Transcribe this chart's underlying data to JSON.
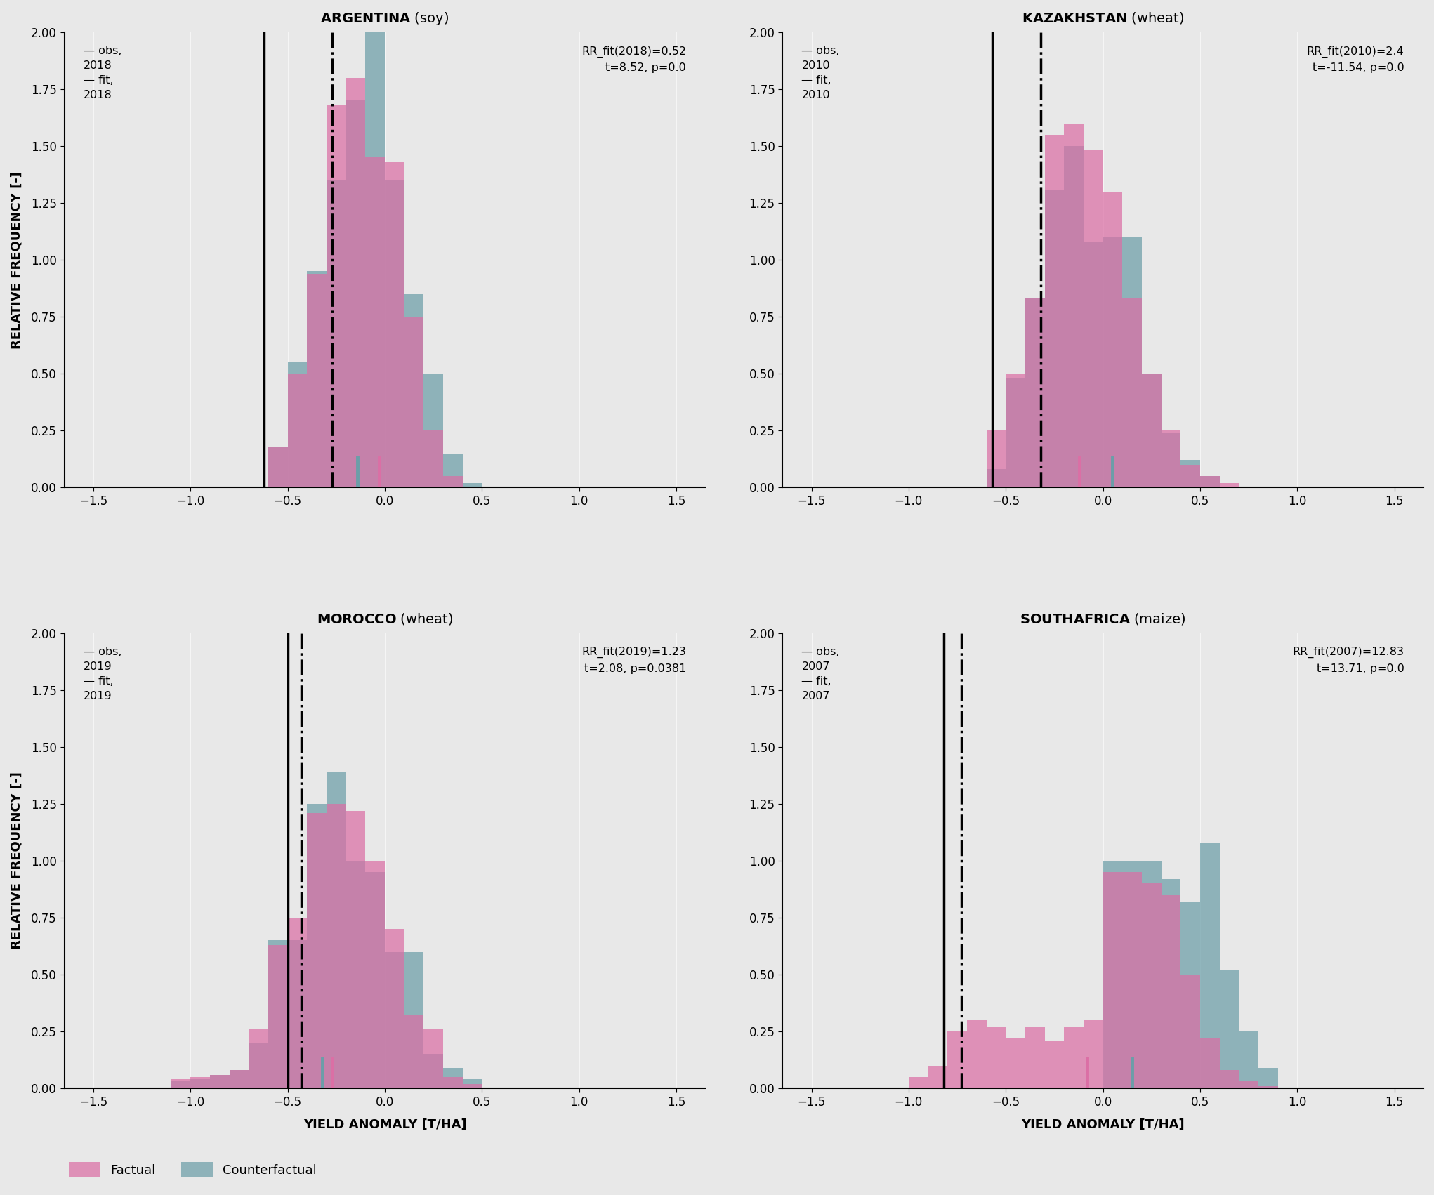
{
  "panels": [
    {
      "title": "ARGENTINA",
      "crop": "soy",
      "year": 2018,
      "rr_text": "RR_fit(2018)=0.52\nt=8.52, p=0.0",
      "obs_line": -0.62,
      "fit_line": -0.27,
      "factual_tick": -0.03,
      "counterfactual_tick": -0.14,
      "factual_bins": [
        -0.55,
        -0.45,
        -0.35,
        -0.25,
        -0.15,
        -0.05,
        0.05,
        0.15,
        0.25,
        0.35,
        0.45,
        0.55
      ],
      "factual_heights": [
        0.18,
        0.5,
        0.94,
        1.68,
        1.8,
        1.45,
        1.43,
        0.75,
        0.25,
        0.05,
        0.0,
        0.0
      ],
      "counterfactual_bins": [
        -0.55,
        -0.45,
        -0.35,
        -0.25,
        -0.15,
        -0.05,
        0.05,
        0.15,
        0.25,
        0.35,
        0.45
      ],
      "counterfactual_heights": [
        0.18,
        0.55,
        0.95,
        1.35,
        1.7,
        2.0,
        1.35,
        0.85,
        0.5,
        0.15,
        0.02
      ],
      "ylim": [
        0,
        2.0
      ],
      "xlim": [
        -1.65,
        1.65
      ],
      "yticks": [
        0,
        0.25,
        0.5,
        0.75,
        1.0,
        1.25,
        1.5,
        1.75,
        2.0
      ],
      "xticks": [
        -1.5,
        -1.0,
        -0.5,
        0.0,
        0.5,
        1.0,
        1.5
      ],
      "ylabel": "RELATIVE FREQUENCY [-]",
      "xlabel": ""
    },
    {
      "title": "KAZAKHSTAN",
      "crop": "wheat",
      "year": 2010,
      "rr_text": "RR_fit(2010)=2.4\nt=-11.54, p=0.0",
      "obs_line": -0.57,
      "fit_line": -0.32,
      "factual_tick": -0.12,
      "counterfactual_tick": 0.05,
      "factual_bins": [
        -0.55,
        -0.45,
        -0.35,
        -0.25,
        -0.15,
        -0.05,
        0.05,
        0.15,
        0.25,
        0.35,
        0.45,
        0.55,
        0.65,
        0.75
      ],
      "factual_heights": [
        0.25,
        0.5,
        0.83,
        1.55,
        1.6,
        1.48,
        1.3,
        0.83,
        0.5,
        0.25,
        0.1,
        0.05,
        0.02,
        0.0
      ],
      "counterfactual_bins": [
        -0.55,
        -0.45,
        -0.35,
        -0.25,
        -0.15,
        -0.05,
        0.05,
        0.15,
        0.25,
        0.35,
        0.45,
        0.55,
        0.65,
        0.75
      ],
      "counterfactual_heights": [
        0.08,
        0.48,
        0.83,
        1.31,
        1.5,
        1.08,
        1.1,
        1.1,
        0.5,
        0.24,
        0.12,
        0.05,
        0.0,
        0.0
      ],
      "ylim": [
        0,
        2.0
      ],
      "xlim": [
        -1.65,
        1.65
      ],
      "yticks": [
        0,
        0.25,
        0.5,
        0.75,
        1.0,
        1.25,
        1.5,
        1.75,
        2.0
      ],
      "xticks": [
        -1.5,
        -1.0,
        -0.5,
        0.0,
        0.5,
        1.0,
        1.5
      ],
      "ylabel": "",
      "xlabel": ""
    },
    {
      "title": "MOROCCO",
      "crop": "wheat",
      "year": 2019,
      "rr_text": "RR_fit(2019)=1.23\nt=2.08, p=0.0381",
      "obs_line": -0.5,
      "fit_line": -0.43,
      "factual_tick": -0.27,
      "counterfactual_tick": -0.32,
      "factual_bins": [
        -1.05,
        -0.95,
        -0.85,
        -0.75,
        -0.65,
        -0.55,
        -0.45,
        -0.35,
        -0.25,
        -0.15,
        -0.05,
        0.05,
        0.15,
        0.25,
        0.35,
        0.45,
        0.55,
        0.65
      ],
      "factual_heights": [
        0.04,
        0.05,
        0.06,
        0.08,
        0.26,
        0.63,
        0.75,
        1.21,
        1.25,
        1.22,
        1.0,
        0.7,
        0.32,
        0.26,
        0.05,
        0.02,
        0.0,
        0.0
      ],
      "counterfactual_bins": [
        -1.05,
        -0.95,
        -0.85,
        -0.75,
        -0.65,
        -0.55,
        -0.45,
        -0.35,
        -0.25,
        -0.15,
        -0.05,
        0.05,
        0.15,
        0.25,
        0.35,
        0.45,
        0.55,
        0.65
      ],
      "counterfactual_heights": [
        0.03,
        0.04,
        0.06,
        0.08,
        0.2,
        0.65,
        0.65,
        1.25,
        1.39,
        1.0,
        0.95,
        0.6,
        0.6,
        0.15,
        0.09,
        0.04,
        0.0,
        0.0
      ],
      "ylim": [
        0,
        2.0
      ],
      "xlim": [
        -1.65,
        1.65
      ],
      "yticks": [
        0,
        0.25,
        0.5,
        0.75,
        1.0,
        1.25,
        1.5,
        1.75,
        2.0
      ],
      "xticks": [
        -1.5,
        -1.0,
        -0.5,
        0.0,
        0.5,
        1.0,
        1.5
      ],
      "ylabel": "RELATIVE FREQUENCY [-]",
      "xlabel": "YIELD ANOMALY [T/HA]"
    },
    {
      "title": "SOUTH AFRICA",
      "crop": "maize",
      "year": 2007,
      "rr_text": "RR_fit(2007)=12.83\nt=13.71, p=0.0",
      "obs_line": -0.82,
      "fit_line": -0.73,
      "factual_tick": -0.08,
      "counterfactual_tick": 0.15,
      "factual_bins": [
        -0.95,
        -0.85,
        -0.75,
        -0.65,
        -0.55,
        -0.45,
        -0.35,
        -0.25,
        -0.15,
        -0.05,
        0.05,
        0.15,
        0.25,
        0.35,
        0.45,
        0.55,
        0.65,
        0.75,
        0.85
      ],
      "factual_heights": [
        0.05,
        0.1,
        0.25,
        0.3,
        0.27,
        0.22,
        0.27,
        0.21,
        0.27,
        0.3,
        0.95,
        0.95,
        0.9,
        0.85,
        0.5,
        0.22,
        0.08,
        0.03,
        0.01
      ],
      "counterfactual_bins": [
        -0.95,
        -0.85,
        -0.75,
        -0.65,
        -0.55,
        -0.45,
        -0.35,
        -0.25,
        -0.15,
        -0.05,
        0.05,
        0.15,
        0.25,
        0.35,
        0.45,
        0.55,
        0.65,
        0.75,
        0.85
      ],
      "counterfactual_heights": [
        0.0,
        0.0,
        0.0,
        0.0,
        0.0,
        0.0,
        0.0,
        0.0,
        0.0,
        0.0,
        1.0,
        1.0,
        1.0,
        0.92,
        0.82,
        1.08,
        0.52,
        0.25,
        0.09
      ],
      "ylim": [
        0,
        2.0
      ],
      "xlim": [
        -1.65,
        1.65
      ],
      "yticks": [
        0,
        0.25,
        0.5,
        0.75,
        1.0,
        1.25,
        1.5,
        1.75,
        2.0
      ],
      "xticks": [
        -1.5,
        -1.0,
        -0.5,
        0.0,
        0.5,
        1.0,
        1.5
      ],
      "ylabel": "",
      "xlabel": "YIELD ANOMALY [T/HA]"
    }
  ],
  "factual_color": "#db6fa5",
  "counterfactual_color": "#6b9ea8",
  "bg_color": "#e8e8e8",
  "bar_alpha": 0.72,
  "bin_width": 0.1
}
